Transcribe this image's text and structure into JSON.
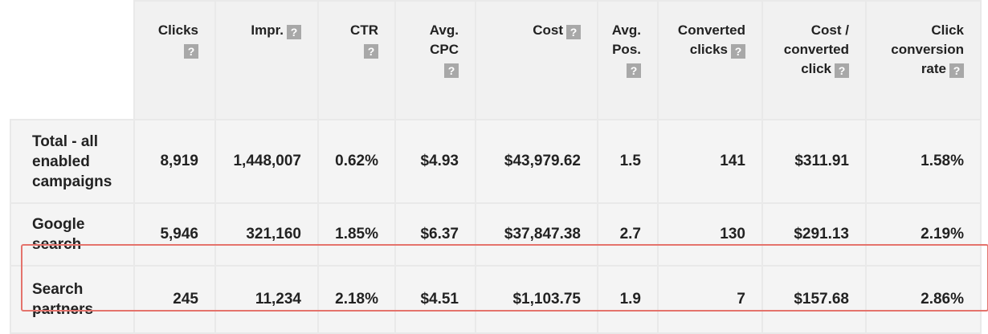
{
  "table": {
    "columns": [
      {
        "key": "clicks",
        "lines": [
          "Clicks"
        ],
        "help_inline": false
      },
      {
        "key": "impr",
        "lines": [
          "Impr."
        ],
        "help_inline": true
      },
      {
        "key": "ctr",
        "lines": [
          "CTR"
        ],
        "help_inline": false
      },
      {
        "key": "avg_cpc",
        "lines": [
          "Avg.",
          "CPC"
        ],
        "help_inline": false
      },
      {
        "key": "cost",
        "lines": [
          "Cost"
        ],
        "help_inline": true
      },
      {
        "key": "avg_pos",
        "lines": [
          "Avg.",
          "Pos."
        ],
        "help_inline": false
      },
      {
        "key": "converted_clicks",
        "lines": [
          "Converted",
          "clicks"
        ],
        "help_inline": true
      },
      {
        "key": "cost_per_converted_click",
        "lines": [
          "Cost /",
          "converted",
          "click"
        ],
        "help_inline": true
      },
      {
        "key": "click_conversion_rate",
        "lines": [
          "Click",
          "conversion",
          "rate"
        ],
        "help_inline": true
      }
    ],
    "help_glyph": "?",
    "rows": [
      {
        "label_lines": [
          "Total - all",
          "enabled",
          "campaigns"
        ],
        "values": [
          "8,919",
          "1,448,007",
          "0.62%",
          "$4.93",
          "$43,979.62",
          "1.5",
          "141",
          "$311.91",
          "1.58%"
        ]
      },
      {
        "label_lines": [
          "Google",
          "search"
        ],
        "values": [
          "5,946",
          "321,160",
          "1.85%",
          "$6.37",
          "$37,847.38",
          "2.7",
          "130",
          "$291.13",
          "2.19%"
        ]
      },
      {
        "label_lines": [
          "Search",
          "partners"
        ],
        "values": [
          "245",
          "11,234",
          "2.18%",
          "$4.51",
          "$1,103.75",
          "1.9",
          "7",
          "$157.68",
          "2.86%"
        ],
        "highlighted": true
      }
    ]
  },
  "colors": {
    "highlight_border": "#e4736c",
    "header_bg": "#f1f1f1",
    "cell_bg": "#f4f4f4",
    "help_icon_bg": "#a8a8a8"
  }
}
